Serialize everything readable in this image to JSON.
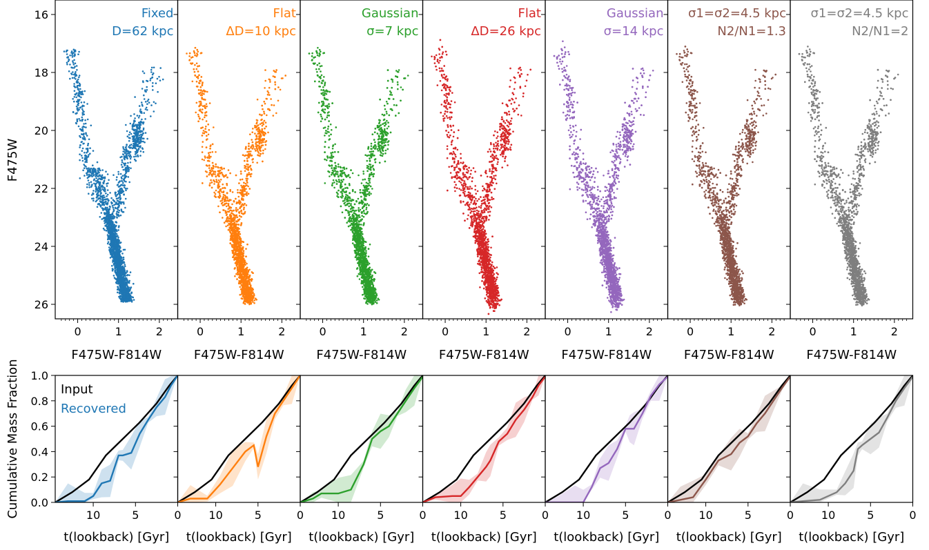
{
  "chart_data": {
    "type": "scatter",
    "cmd": {
      "xlabel": "F475W-F814W",
      "ylabel": "F475W",
      "xlim": [
        -0.55,
        2.45
      ],
      "ylim": [
        26.5,
        15.5
      ],
      "xticks": [
        0,
        1,
        2
      ],
      "yticks": [
        16,
        18,
        20,
        22,
        24,
        26
      ]
    },
    "sfh": {
      "xlabel": "t(lookback) [Gyr]",
      "ylabel": "Cumulative Mass Fraction",
      "xlim": [
        14.5,
        0
      ],
      "ylim": [
        0,
        1
      ],
      "xticks": [
        10,
        5,
        0
      ],
      "yticks": [
        0.0,
        0.2,
        0.4,
        0.6,
        0.8,
        1.0
      ],
      "legend": {
        "input": "Input",
        "recovered": "Recovered",
        "placement": "top-left"
      },
      "input_t": [
        14.5,
        12.5,
        10.5,
        8.5,
        6.5,
        4.5,
        2.5,
        1,
        0
      ],
      "input_f": [
        0.0,
        0.08,
        0.18,
        0.37,
        0.5,
        0.63,
        0.78,
        0.92,
        1.0
      ]
    },
    "panels": [
      {
        "color": "#1f77b4",
        "label_lines": [
          "Fixed",
          "D=62 kpc"
        ],
        "rec_t": [
          14.5,
          13,
          11,
          10,
          9,
          8,
          7,
          6.5,
          5.5,
          4.5,
          3.5,
          2.5,
          1.5,
          0.8,
          0
        ],
        "rec_f": [
          0,
          0.01,
          0.01,
          0.05,
          0.15,
          0.17,
          0.37,
          0.37,
          0.39,
          0.54,
          0.65,
          0.75,
          0.83,
          0.92,
          1.0
        ]
      },
      {
        "color": "#ff7f0e",
        "label_lines": [
          "Flat",
          "ΔD=10 kpc"
        ],
        "rec_t": [
          14.5,
          13,
          11,
          9.5,
          8,
          6.5,
          5.5,
          5,
          4,
          3,
          2,
          1,
          0
        ],
        "rec_f": [
          0,
          0.03,
          0.03,
          0.14,
          0.27,
          0.4,
          0.45,
          0.28,
          0.52,
          0.7,
          0.8,
          0.9,
          1.0
        ]
      },
      {
        "color": "#2ca02c",
        "label_lines": [
          "Gaussian",
          "σ=7 kpc"
        ],
        "rec_t": [
          14.5,
          13,
          12,
          10,
          8.5,
          7,
          6,
          5,
          4,
          3,
          2,
          1,
          0
        ],
        "rec_f": [
          0,
          0.03,
          0.07,
          0.07,
          0.1,
          0.3,
          0.5,
          0.56,
          0.6,
          0.7,
          0.8,
          0.9,
          0.99
        ]
      },
      {
        "color": "#d62728",
        "label_lines": [
          "Flat",
          "ΔD=26 kpc"
        ],
        "rec_t": [
          14.5,
          13,
          11,
          10,
          9,
          8,
          7,
          6.5,
          5.5,
          4.5,
          3.5,
          2.5,
          1.5,
          0.8,
          0
        ],
        "rec_f": [
          0,
          0.04,
          0.05,
          0.05,
          0.12,
          0.2,
          0.28,
          0.33,
          0.48,
          0.54,
          0.65,
          0.73,
          0.83,
          0.92,
          0.99
        ]
      },
      {
        "color": "#9467bd",
        "label_lines": [
          "Gaussian",
          "σ=14 kpc"
        ],
        "rec_t": [
          14.5,
          13,
          11,
          10,
          9,
          8,
          7,
          6,
          5,
          4.5,
          4,
          3,
          2,
          1,
          0
        ],
        "rec_f": [
          0,
          0.0,
          0.0,
          0.0,
          0.12,
          0.27,
          0.31,
          0.42,
          0.58,
          0.58,
          0.58,
          0.7,
          0.84,
          0.93,
          0.99
        ]
      },
      {
        "color": "#8c564b",
        "label_lines": [
          "σ1=σ2=4.5 kpc",
          "N2/N1=1.3"
        ],
        "rec_t": [
          14.5,
          13,
          11.5,
          10,
          8.5,
          7,
          6,
          5,
          4,
          3,
          2,
          1,
          0
        ],
        "rec_f": [
          0,
          0.02,
          0.04,
          0.18,
          0.33,
          0.38,
          0.47,
          0.52,
          0.62,
          0.7,
          0.8,
          0.9,
          0.99
        ]
      },
      {
        "color": "#7f7f7f",
        "label_lines": [
          "σ1=σ2=4.5 kpc",
          "N2/N1=2"
        ],
        "rec_t": [
          14.5,
          13,
          11,
          9,
          8,
          7,
          6.5,
          6,
          5,
          4,
          3,
          2,
          1,
          0
        ],
        "rec_f": [
          0,
          0.01,
          0.02,
          0.08,
          0.15,
          0.25,
          0.42,
          0.45,
          0.5,
          0.55,
          0.67,
          0.8,
          0.9,
          0.99
        ]
      }
    ]
  }
}
